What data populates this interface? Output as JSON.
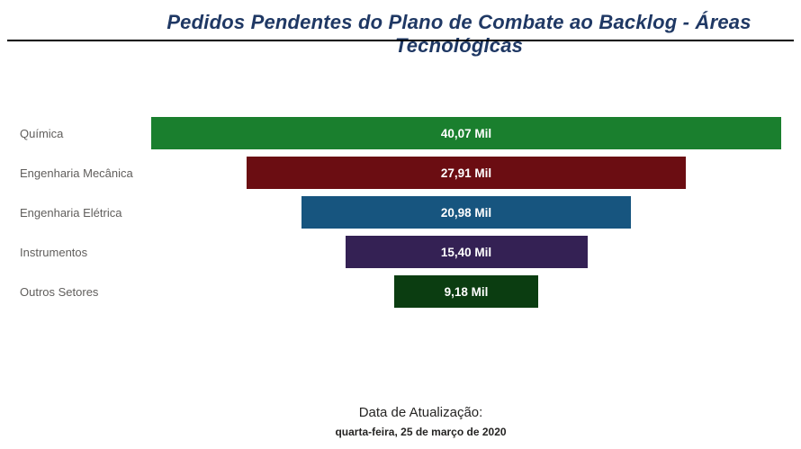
{
  "header": {
    "title": "Pedidos Pendentes do Plano de Combate ao Backlog - Áreas Tecnológicas"
  },
  "chart_data": {
    "type": "bar",
    "variant": "funnel",
    "title": "Pedidos Pendentes do Plano de Combate ao Backlog - Áreas Tecnológicas",
    "categories": [
      "Química",
      "Engenharia Mecânica",
      "Engenharia Elétrica",
      "Instrumentos",
      "Outros Setores"
    ],
    "values": [
      40.07,
      27.91,
      20.98,
      15.4,
      9.18
    ],
    "unit": "Mil",
    "max_value": 40.07,
    "xlabel": "",
    "ylabel": "",
    "grid": false,
    "legend": "none",
    "layout": "horizontal-centered-funnel",
    "rows": [
      {
        "label": "Química",
        "value": 40.07,
        "value_label": "40,07 Mil",
        "color": "#1a7f2e"
      },
      {
        "label": "Engenharia Mecânica",
        "value": 27.91,
        "value_label": "27,91 Mil",
        "color": "#6b0d12"
      },
      {
        "label": "Engenharia Elétrica",
        "value": 20.98,
        "value_label": "20,98 Mil",
        "color": "#17557f"
      },
      {
        "label": "Instrumentos",
        "value": 15.4,
        "value_label": "15,40 Mil",
        "color": "#342154"
      },
      {
        "label": "Outros Setores",
        "value": 9.18,
        "value_label": "9,18 Mil",
        "color": "#0b3d11"
      }
    ]
  },
  "footer": {
    "update_label": "Data de Atualização:",
    "update_date": "quarta-feira, 25 de março de 2020"
  }
}
